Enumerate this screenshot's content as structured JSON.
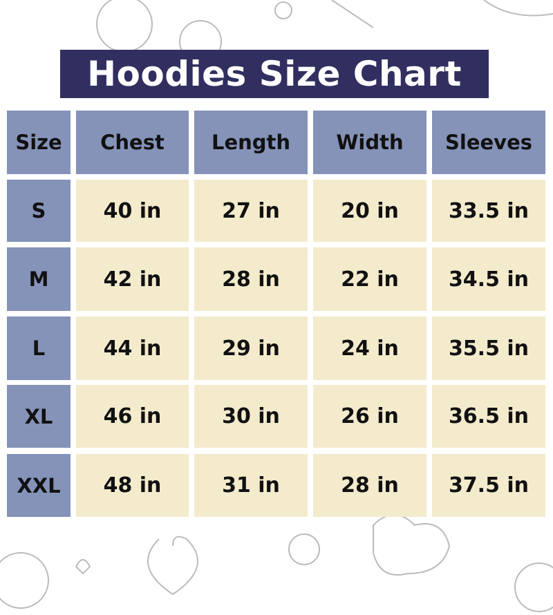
{
  "title": "Hoodies Size Chart",
  "colors": {
    "title_bg": "#302f5f",
    "header_bg": "#8593b9",
    "cell_bg": "#f4ebcd"
  },
  "headers": [
    "Size",
    "Chest",
    "Length",
    "Width",
    "Sleeves"
  ],
  "rows": [
    [
      "S",
      "40 in",
      "27 in",
      "20 in",
      "33.5 in"
    ],
    [
      "M",
      "42 in",
      "28 in",
      "22 in",
      "34.5 in"
    ],
    [
      "L",
      "44 in",
      "29 in",
      "24 in",
      "35.5 in"
    ],
    [
      "XL",
      "46 in",
      "30 in",
      "26 in",
      "36.5 in"
    ],
    [
      "XXL",
      "48 in",
      "31 in",
      "28 in",
      "37.5 in"
    ]
  ]
}
